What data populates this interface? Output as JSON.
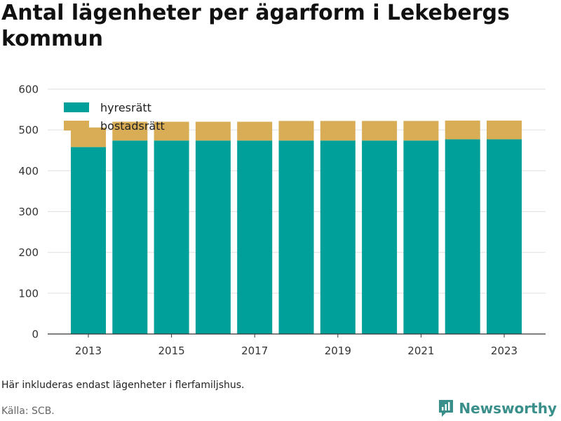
{
  "chart_data": {
    "type": "bar",
    "stacked": true,
    "title": "Antal lägenheter per ägarform i Lekebergs kommun",
    "categories": [
      2013,
      2014,
      2015,
      2016,
      2017,
      2018,
      2019,
      2020,
      2021,
      2022,
      2023
    ],
    "tick_labels_x": [
      "2013",
      "2015",
      "2017",
      "2019",
      "2021",
      "2023"
    ],
    "series": [
      {
        "name": "hyresrätt",
        "color": "#00a09a",
        "values": [
          458,
          474,
          474,
          474,
          474,
          474,
          474,
          474,
          474,
          477,
          477
        ]
      },
      {
        "name": "bostadsrätt",
        "color": "#d9ad56",
        "values": [
          48,
          46,
          46,
          46,
          46,
          48,
          48,
          48,
          48,
          46,
          46
        ]
      }
    ],
    "ylim": [
      0,
      600
    ],
    "yticks": [
      0,
      100,
      200,
      300,
      400,
      500,
      600
    ],
    "grid": true,
    "legend_position": "top-left"
  },
  "note": "Här inkluderas endast lägenheter i flerfamiljshus.",
  "source": "Källa: SCB.",
  "logo_text": "Newsworthy",
  "colors": {
    "logo": "#3a8f8a"
  }
}
